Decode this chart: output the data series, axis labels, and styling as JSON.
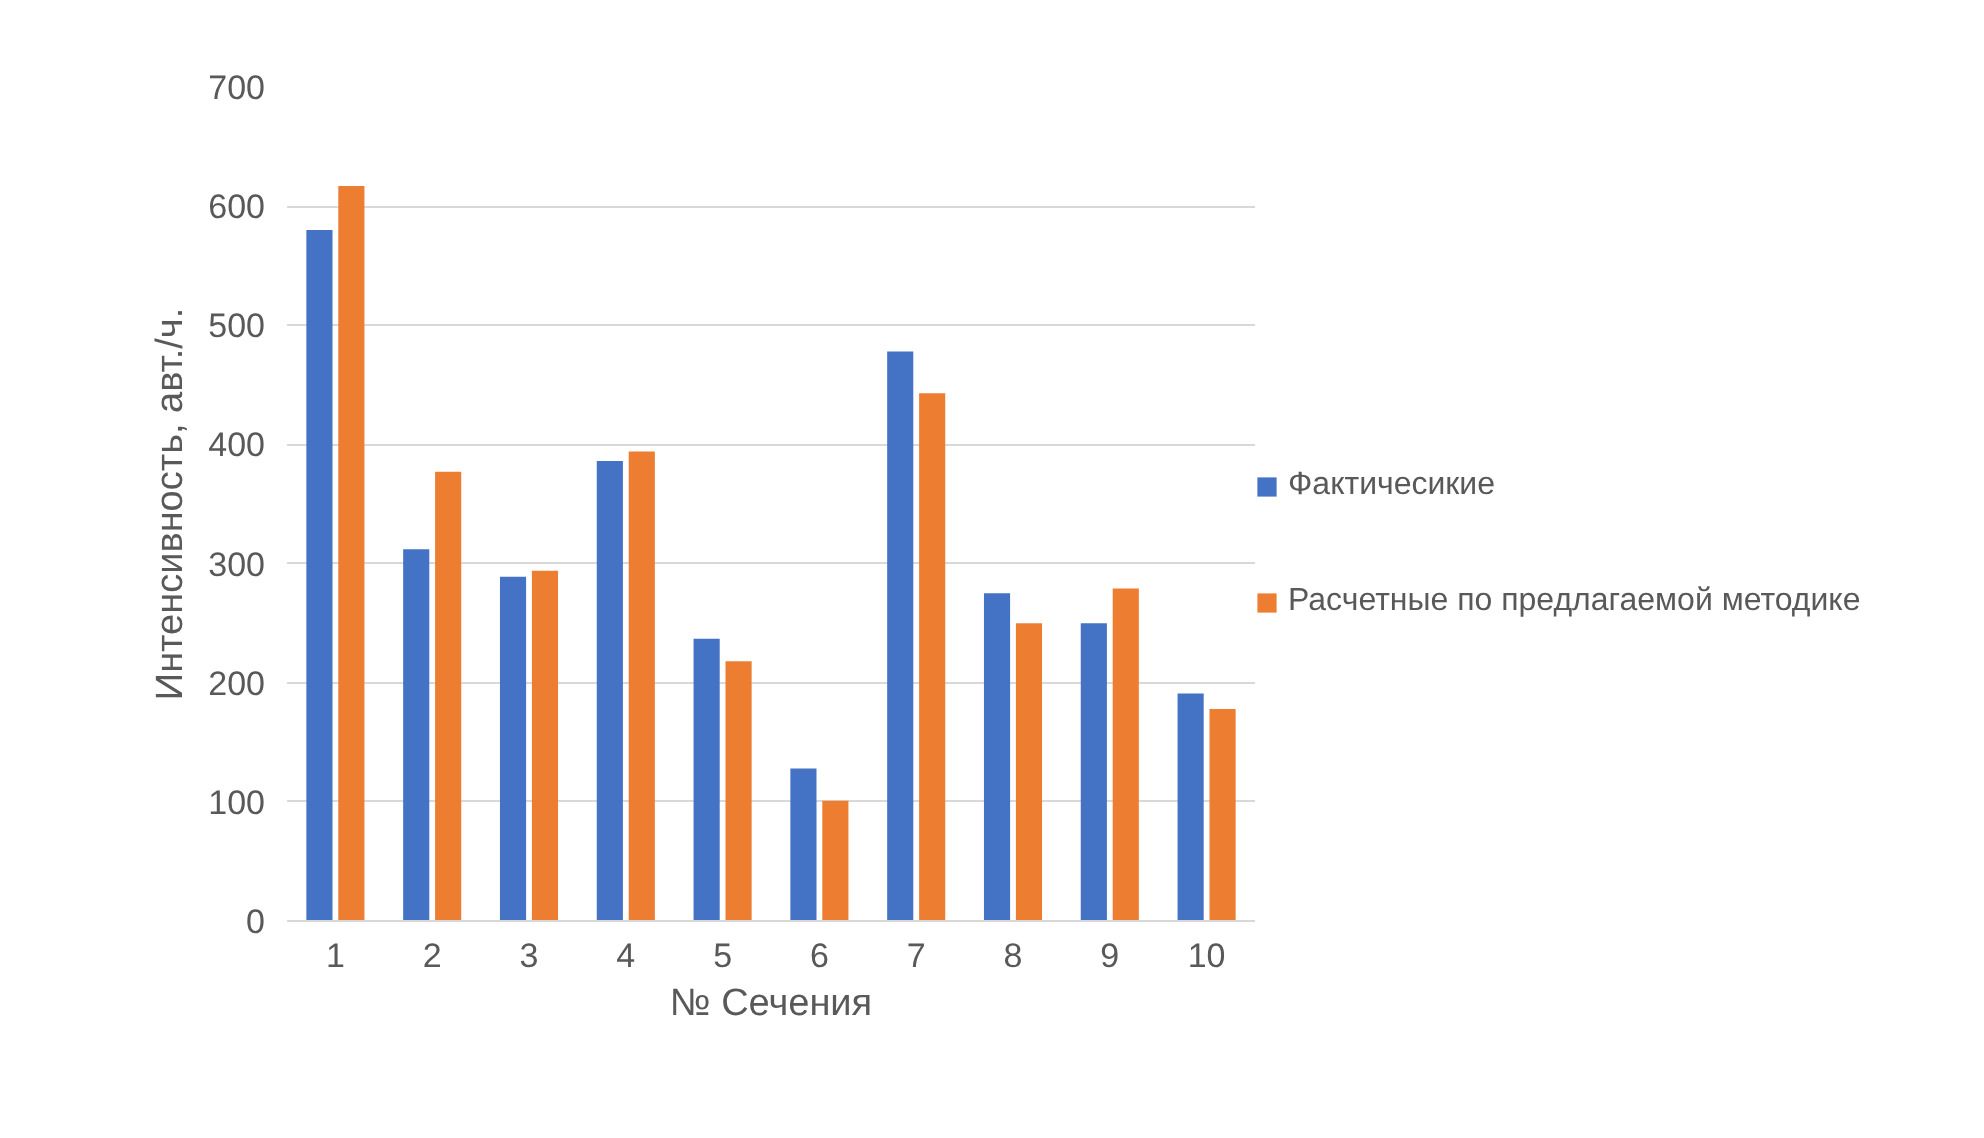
{
  "chart_data": {
    "type": "bar",
    "xlabel": "№ Сечения",
    "ylabel": "Интенсивность, авт./ч.",
    "categories": [
      "1",
      "2",
      "3",
      "4",
      "5",
      "6",
      "7",
      "8",
      "9",
      "10"
    ],
    "series": [
      {
        "name": "Фактичесикие",
        "color": "#4472c4",
        "values": [
          580,
          312,
          289,
          386,
          237,
          128,
          478,
          275,
          250,
          191
        ]
      },
      {
        "name": "Расчетные по предлагаемой методике",
        "color": "#ed7d31",
        "values": [
          617,
          377,
          294,
          394,
          218,
          101,
          443,
          250,
          279,
          178
        ]
      }
    ],
    "ylim": [
      0,
      700
    ],
    "yticks": [
      0,
      100,
      200,
      300,
      400,
      500,
      600,
      700
    ],
    "grid": "y",
    "legend": "right"
  }
}
